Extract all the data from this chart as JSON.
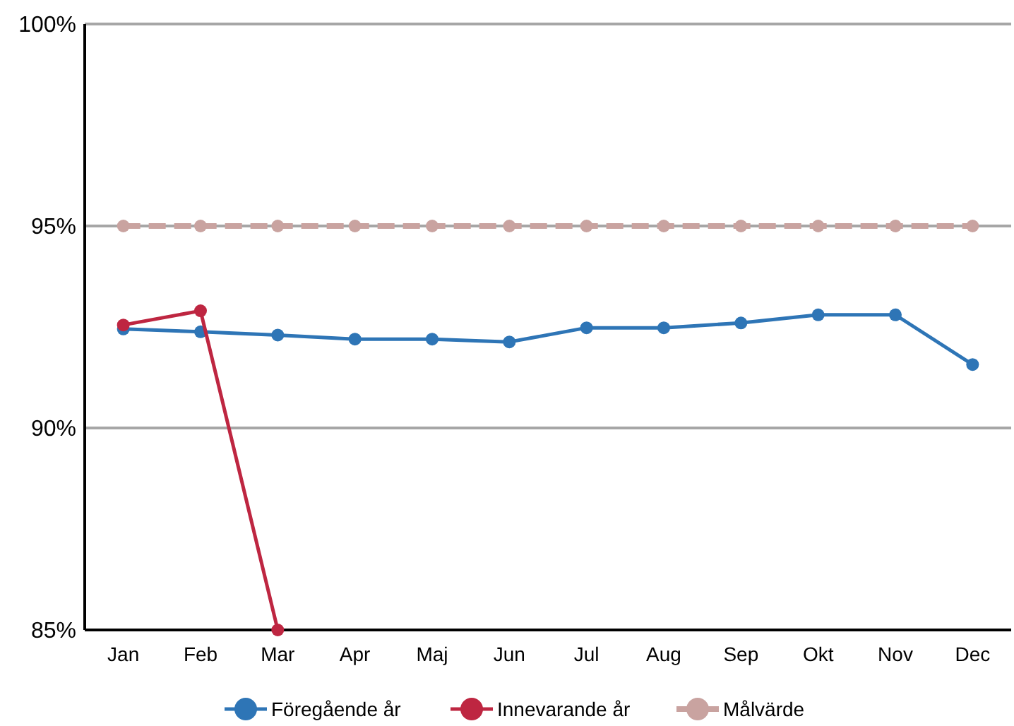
{
  "chart_data": {
    "type": "line",
    "categories": [
      "Jan",
      "Feb",
      "Mar",
      "Apr",
      "Maj",
      "Jun",
      "Jul",
      "Aug",
      "Sep",
      "Okt",
      "Nov",
      "Dec"
    ],
    "series": [
      {
        "name": "Föregående år",
        "color": "#2e75b6",
        "values": [
          92.45,
          92.38,
          92.3,
          92.2,
          92.2,
          92.13,
          92.48,
          92.48,
          92.6,
          92.8,
          92.8,
          91.57
        ]
      },
      {
        "name": "Innevarande år",
        "color": "#be2641",
        "values": [
          92.55,
          92.9,
          85,
          null,
          null,
          null,
          null,
          null,
          null,
          null,
          null,
          null
        ]
      },
      {
        "name": "Målvärde",
        "color": "#c9a3a0",
        "line_style": "dashed",
        "values": [
          95,
          95,
          95,
          95,
          95,
          95,
          95,
          95,
          95,
          95,
          95,
          95
        ]
      }
    ],
    "ylim": [
      85,
      100
    ],
    "yticks": [
      {
        "value": 85,
        "label": "85%"
      },
      {
        "value": 90,
        "label": "90%"
      },
      {
        "value": 95,
        "label": "95%"
      },
      {
        "value": 100,
        "label": "100%"
      }
    ],
    "grid": "y",
    "legend": "bottom",
    "marker": "circle",
    "line_style": "solid"
  }
}
